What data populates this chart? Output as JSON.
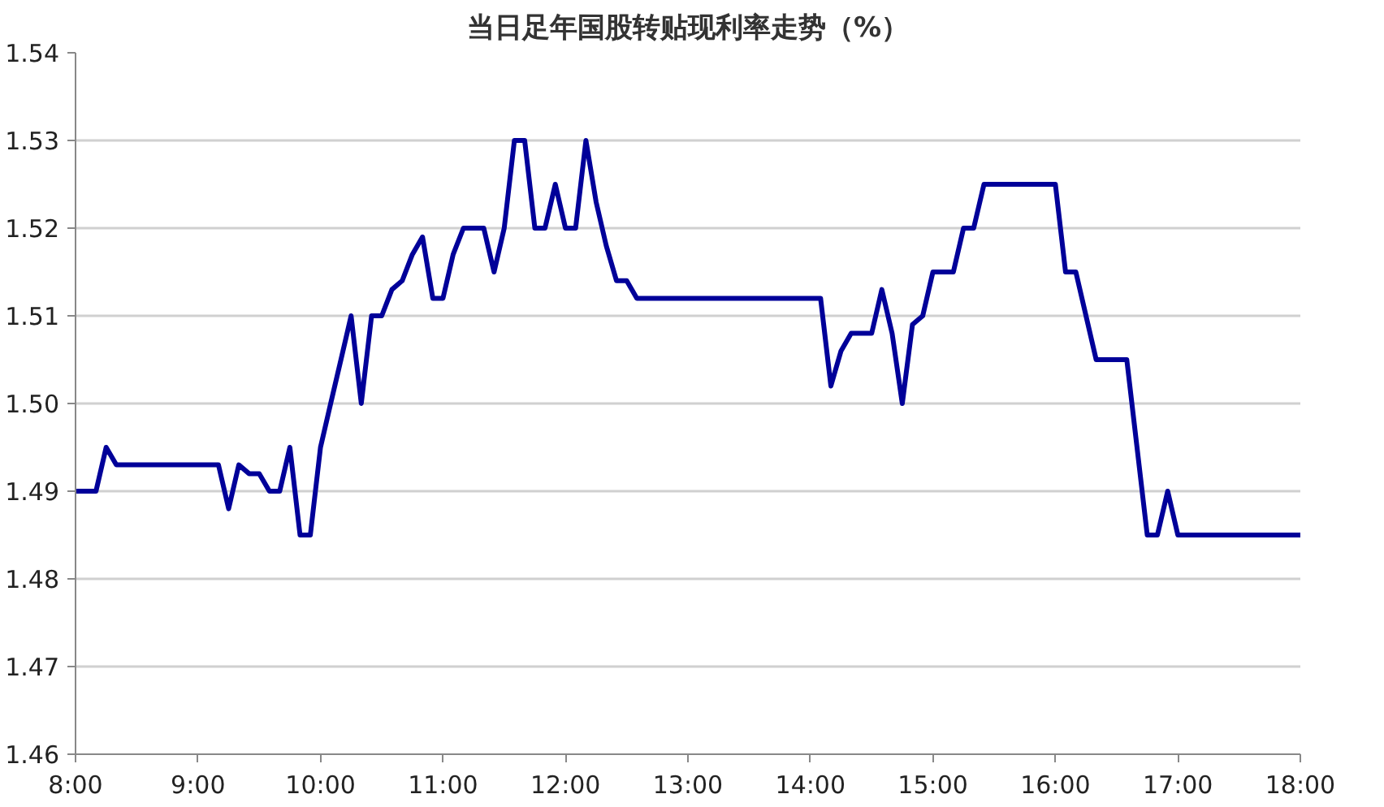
{
  "chart_data": {
    "type": "line",
    "title": "当日足年国股转贴现利率走势（%）",
    "x": [
      8.0,
      8.167,
      8.25,
      8.333,
      9.167,
      9.25,
      9.333,
      9.417,
      9.5,
      9.583,
      9.667,
      9.75,
      9.833,
      9.917,
      10.0,
      10.083,
      10.167,
      10.25,
      10.333,
      10.417,
      10.5,
      10.583,
      10.667,
      10.75,
      10.833,
      10.917,
      11.0,
      11.083,
      11.167,
      11.333,
      11.417,
      11.5,
      11.583,
      11.667,
      11.75,
      11.833,
      11.917,
      12.0,
      12.083,
      12.167,
      12.25,
      12.333,
      12.417,
      12.5,
      12.583,
      14.083,
      14.167,
      14.25,
      14.333,
      14.5,
      14.583,
      14.667,
      14.75,
      14.833,
      14.917,
      15.0,
      15.167,
      15.25,
      15.333,
      15.417,
      16.0,
      16.083,
      16.167,
      16.25,
      16.333,
      16.583,
      16.75,
      16.833,
      16.917,
      17.0,
      18.0
    ],
    "series": [
      {
        "color": "#000099",
        "values": [
          1.49,
          1.49,
          1.495,
          1.493,
          1.493,
          1.488,
          1.493,
          1.492,
          1.492,
          1.49,
          1.49,
          1.495,
          1.485,
          1.485,
          1.495,
          1.5,
          1.505,
          1.51,
          1.5,
          1.51,
          1.51,
          1.513,
          1.514,
          1.517,
          1.519,
          1.512,
          1.512,
          1.517,
          1.52,
          1.52,
          1.515,
          1.52,
          1.53,
          1.53,
          1.52,
          1.52,
          1.525,
          1.52,
          1.52,
          1.53,
          1.523,
          1.518,
          1.514,
          1.514,
          1.512,
          1.512,
          1.502,
          1.506,
          1.508,
          1.508,
          1.513,
          1.508,
          1.5,
          1.509,
          1.51,
          1.515,
          1.515,
          1.52,
          1.52,
          1.525,
          1.525,
          1.515,
          1.515,
          1.51,
          1.505,
          1.505,
          1.485,
          1.485,
          1.49,
          1.485,
          1.485
        ]
      }
    ],
    "xlim": [
      8,
      18
    ],
    "xticks": [
      {
        "value": 8,
        "label": "8:00"
      },
      {
        "value": 9,
        "label": "9:00"
      },
      {
        "value": 10,
        "label": "10:00"
      },
      {
        "value": 11,
        "label": "11:00"
      },
      {
        "value": 12,
        "label": "12:00"
      },
      {
        "value": 13,
        "label": "13:00"
      },
      {
        "value": 14,
        "label": "14:00"
      },
      {
        "value": 15,
        "label": "15:00"
      },
      {
        "value": 16,
        "label": "16:00"
      },
      {
        "value": 17,
        "label": "17:00"
      },
      {
        "value": 18,
        "label": "18:00"
      }
    ],
    "ylim": [
      1.46,
      1.54
    ],
    "yticks": [
      1.46,
      1.47,
      1.48,
      1.49,
      {
        "value": 1.5,
        "label": "1.50"
      },
      1.51,
      1.52,
      1.53,
      1.54
    ],
    "grid": "y",
    "line_style": "solid"
  }
}
